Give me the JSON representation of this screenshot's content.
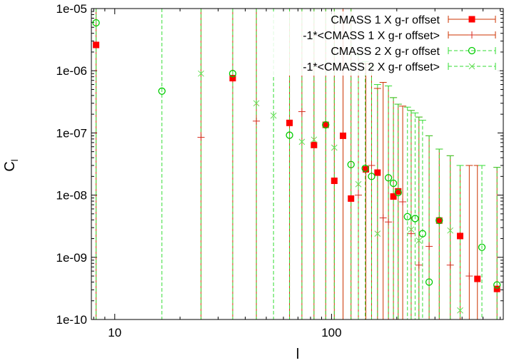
{
  "chart_data": {
    "type": "scatter",
    "xscale": "log",
    "yscale": "log",
    "xlabel": "l",
    "ylabel": "C_l",
    "xlim": [
      7.8,
      620
    ],
    "ylim": [
      1e-10,
      1e-05
    ],
    "xticks": [
      {
        "value": 10,
        "label": "10"
      },
      {
        "value": 100,
        "label": "100"
      }
    ],
    "yticks": [
      {
        "value": 1e-10,
        "label": "1e-10"
      },
      {
        "value": 1e-09,
        "label": "1e-09"
      },
      {
        "value": 1e-08,
        "label": "1e-08"
      },
      {
        "value": 1e-07,
        "label": "1e-07"
      },
      {
        "value": 1e-06,
        "label": "1e-06"
      },
      {
        "value": 1e-05,
        "label": "1e-05"
      }
    ],
    "legend_position": "top-right",
    "series": [
      {
        "name": "CMASS 1 X g-r offset",
        "marker": "filled-square",
        "color": "#ff0000",
        "errcolor": "#cc3300",
        "points": [
          {
            "x": 8.2,
            "y": 2.6e-06,
            "up": 1e-05
          },
          {
            "x": 35,
            "y": 7.6e-07,
            "up": 1e-05
          },
          {
            "x": 64,
            "y": 1.45e-07,
            "up": 1e-05
          },
          {
            "x": 83,
            "y": 6.4e-08,
            "up": 1e-05
          },
          {
            "x": 94,
            "y": 1.35e-07,
            "up": 1e-05
          },
          {
            "x": 103,
            "y": 1.7e-08,
            "up": 1e-05
          },
          {
            "x": 113,
            "y": 9e-08,
            "up": 1e-05
          },
          {
            "x": 123,
            "y": 8.8e-09,
            "up": 1e-05
          },
          {
            "x": 144,
            "y": 2.6e-08,
            "up": 1.3e-06
          },
          {
            "x": 163,
            "y": 2.3e-08,
            "up": 5.2e-07
          },
          {
            "x": 193,
            "y": 9.5e-09,
            "up": 3.7e-07
          },
          {
            "x": 203,
            "y": 1.15e-08,
            "up": 2.9e-07
          },
          {
            "x": 314,
            "y": 3.9e-09,
            "up": 5.5e-08
          },
          {
            "x": 392,
            "y": 2.2e-09,
            "up": 3e-08
          },
          {
            "x": 471,
            "y": 4.5e-10,
            "up": 3e-08
          },
          {
            "x": 580,
            "y": 3.1e-10,
            "up": 2.8e-08
          }
        ]
      },
      {
        "name": "-1*<CMASS 1 X g-r offset>",
        "marker": "plus",
        "color": "#d92c1e",
        "errcolor": "#cc3300",
        "points": [
          {
            "x": 25,
            "y": 8.5e-08,
            "up": 1e-05
          },
          {
            "x": 45,
            "y": 1.55e-07,
            "up": 1e-05
          },
          {
            "x": 73,
            "y": 2.2e-07,
            "up": 1e-05
          },
          {
            "x": 133,
            "y": 1e-08,
            "up": 1.8e-06
          },
          {
            "x": 153,
            "y": 3e-08,
            "up": 1.2e-06
          },
          {
            "x": 173,
            "y": 4.3e-09,
            "up": 6.5e-07
          },
          {
            "x": 183,
            "y": 3.7e-09,
            "up": 5.7e-07
          },
          {
            "x": 213,
            "y": 7.8e-09,
            "up": 2.7e-07
          },
          {
            "x": 233,
            "y": 2.4e-09,
            "up": 2.3e-07
          },
          {
            "x": 253,
            "y": 7.5e-10,
            "up": 1.8e-07
          },
          {
            "x": 282,
            "y": 1.5e-09,
            "up": 9e-08
          },
          {
            "x": 353,
            "y": 7.5e-10,
            "up": 4.3e-08
          },
          {
            "x": 432,
            "y": 5e-10,
            "up": 3e-08
          }
        ]
      },
      {
        "name": "CMASS 2 X g-r offset",
        "marker": "open-circle",
        "color": "#00cc00",
        "errcolor": "#33dd33",
        "points": [
          {
            "x": 8.2,
            "y": 5.9e-06,
            "up": 1e-05
          },
          {
            "x": 16.5,
            "y": 4.7e-07,
            "up": 1e-05
          },
          {
            "x": 35,
            "y": 9e-07,
            "up": 1e-05
          },
          {
            "x": 64,
            "y": 9.2e-08,
            "up": 1e-05
          },
          {
            "x": 94,
            "y": 1.35e-07,
            "up": 1e-05
          },
          {
            "x": 123,
            "y": 3.1e-08,
            "up": 1e-05
          },
          {
            "x": 143,
            "y": 2.7e-08,
            "up": 1.4e-06
          },
          {
            "x": 153,
            "y": 2e-08,
            "up": 1.2e-06
          },
          {
            "x": 183,
            "y": 1.9e-08,
            "up": 5.7e-07
          },
          {
            "x": 193,
            "y": 1.55e-08,
            "up": 3.7e-07
          },
          {
            "x": 203,
            "y": 1.1e-08,
            "up": 2.9e-07
          },
          {
            "x": 224,
            "y": 4.5e-09,
            "up": 2.6e-07
          },
          {
            "x": 243,
            "y": 4.2e-09,
            "up": 2.1e-07
          },
          {
            "x": 263,
            "y": 2.4e-09,
            "up": 1.6e-07
          },
          {
            "x": 282,
            "y": 4e-10,
            "up": 9e-08
          },
          {
            "x": 314,
            "y": 3.9e-09,
            "up": 5.5e-08
          },
          {
            "x": 494,
            "y": 1.45e-09,
            "up": 3e-08
          },
          {
            "x": 580,
            "y": 3.6e-10,
            "up": 2.8e-08
          }
        ]
      },
      {
        "name": "-1*<CMASS 2 X g-r offset>",
        "marker": "cross",
        "color": "#66dd55",
        "errcolor": "#33dd33",
        "points": [
          {
            "x": 25,
            "y": 9e-07,
            "up": 1e-05
          },
          {
            "x": 45,
            "y": 3e-07,
            "up": 1e-05
          },
          {
            "x": 54,
            "y": 1.9e-07,
            "up": 1e-05
          },
          {
            "x": 73,
            "y": 7.2e-08,
            "up": 1e-05
          },
          {
            "x": 83,
            "y": 7.8e-08,
            "up": 1e-05
          },
          {
            "x": 103,
            "y": 5.8e-08,
            "up": 1e-05
          },
          {
            "x": 133,
            "y": 1.5e-08,
            "up": 1.8e-06
          },
          {
            "x": 163,
            "y": 2.4e-09,
            "up": 6e-07
          },
          {
            "x": 233,
            "y": 2.8e-09,
            "up": 2.3e-07
          },
          {
            "x": 253,
            "y": 1.85e-09,
            "up": 1.8e-07
          },
          {
            "x": 353,
            "y": 2.7e-09,
            "up": 4.3e-08
          },
          {
            "x": 392,
            "y": 1.4e-10,
            "up": 3e-08
          }
        ]
      }
    ]
  }
}
